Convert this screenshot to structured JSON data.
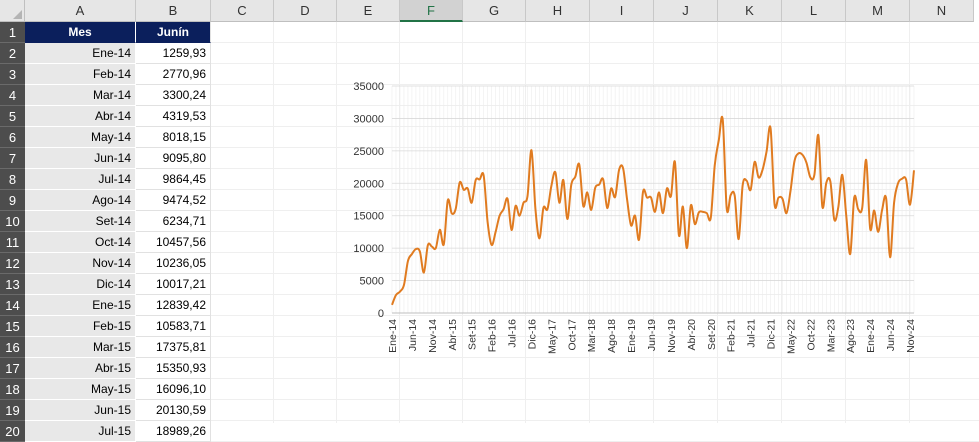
{
  "columns": [
    "A",
    "B",
    "C",
    "D",
    "E",
    "F",
    "G",
    "H",
    "I",
    "J",
    "K",
    "L",
    "M",
    "N"
  ],
  "selected_column": "F",
  "rows": [
    1,
    2,
    3,
    4,
    5,
    6,
    7,
    8,
    9,
    10,
    11,
    12,
    13,
    14,
    15,
    16,
    17,
    18,
    19,
    20
  ],
  "table": {
    "headers": [
      "Mes",
      "Junín"
    ],
    "data": [
      [
        "Ene-14",
        "1259,93"
      ],
      [
        "Feb-14",
        "2770,96"
      ],
      [
        "Mar-14",
        "3300,24"
      ],
      [
        "Abr-14",
        "4319,53"
      ],
      [
        "May-14",
        "8018,15"
      ],
      [
        "Jun-14",
        "9095,80"
      ],
      [
        "Jul-14",
        "9864,45"
      ],
      [
        "Ago-14",
        "9474,52"
      ],
      [
        "Set-14",
        "6234,71"
      ],
      [
        "Oct-14",
        "10457,56"
      ],
      [
        "Nov-14",
        "10236,05"
      ],
      [
        "Dic-14",
        "10017,21"
      ],
      [
        "Ene-15",
        "12839,42"
      ],
      [
        "Feb-15",
        "10583,71"
      ],
      [
        "Mar-15",
        "17375,81"
      ],
      [
        "Abr-15",
        "15350,93"
      ],
      [
        "May-15",
        "16096,10"
      ],
      [
        "Jun-15",
        "20130,59"
      ],
      [
        "Jul-15",
        "18989,26"
      ]
    ]
  },
  "chart_data": {
    "type": "line",
    "color": "#e07b20",
    "ylim": [
      0,
      35000
    ],
    "yticks": [
      0,
      5000,
      10000,
      15000,
      20000,
      25000,
      30000,
      35000
    ],
    "xticklabels": [
      "Ene-14",
      "Jun-14",
      "Nov-14",
      "Abr-15",
      "Set-15",
      "Feb-16",
      "Jul-16",
      "Dic-16",
      "May-17",
      "Oct-17",
      "Mar-18",
      "Ago-18",
      "Ene-19",
      "Jun-19",
      "Nov-19",
      "Abr-20",
      "Set-20",
      "Feb-21",
      "Jul-21",
      "Dic-21",
      "May-22",
      "Oct-22",
      "Mar-23",
      "Ago-23",
      "Ene-24",
      "Jun-24",
      "Nov-24"
    ],
    "series": [
      {
        "values": [
          1260,
          2771,
          3300,
          4320,
          8018,
          9096,
          9864,
          9475,
          6235,
          10458,
          10236,
          10017,
          12839,
          10584,
          17376,
          15351,
          16096,
          20131,
          18989,
          19200,
          17000,
          20500,
          20600,
          21200,
          14000,
          10500,
          12500,
          15000,
          16000,
          17600,
          12800,
          16500,
          15000,
          17000,
          18000,
          25100,
          16000,
          11500,
          16200,
          16000,
          19600,
          21700,
          17000,
          20500,
          14500,
          19800,
          21000,
          22900,
          16500,
          18600,
          15900,
          19300,
          19800,
          20600,
          16200,
          19200,
          17900,
          22100,
          22300,
          17500,
          13500,
          15000,
          11300,
          18700,
          17800,
          17800,
          15600,
          18600,
          15400,
          19200,
          18000,
          23300,
          12000,
          16400,
          10000,
          16600,
          13700,
          15500,
          15600,
          15400,
          14700,
          22800,
          26600,
          29800,
          16100,
          18200,
          18100,
          11400,
          19700,
          20400,
          19000,
          23300,
          20900,
          22100,
          24900,
          28500,
          16800,
          17800,
          17600,
          15400,
          18800,
          23400,
          24600,
          24400,
          23200,
          20900,
          21300,
          27400,
          16400,
          20100,
          20300,
          14400,
          16300,
          21300,
          15000,
          9100,
          17800,
          16000,
          16200,
          23600,
          13000,
          15800,
          12500,
          15900,
          17700,
          8600,
          17000,
          20000,
          20700,
          20600,
          16700,
          22000
        ]
      }
    ]
  }
}
